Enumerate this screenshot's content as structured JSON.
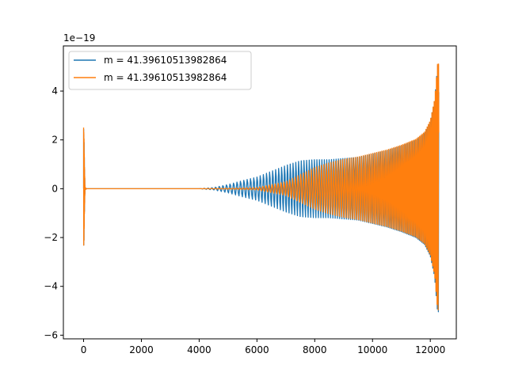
{
  "chart_data": {
    "type": "line",
    "title": "",
    "xlabel": "",
    "ylabel": "",
    "offset_text": "1e−19",
    "xlim": [
      -700,
      12900
    ],
    "ylim": [
      -6.15,
      5.85
    ],
    "x_ticks": [
      {
        "value": 0,
        "label": "0"
      },
      {
        "value": 2000,
        "label": "2000"
      },
      {
        "value": 4000,
        "label": "4000"
      },
      {
        "value": 6000,
        "label": "6000"
      },
      {
        "value": 8000,
        "label": "8000"
      },
      {
        "value": 10000,
        "label": "10000"
      },
      {
        "value": 12000,
        "label": "12000"
      }
    ],
    "y_ticks": [
      {
        "value": -6,
        "label": "−6"
      },
      {
        "value": -4,
        "label": "−4"
      },
      {
        "value": -2,
        "label": "−2"
      },
      {
        "value": 0,
        "label": "0"
      },
      {
        "value": 2,
        "label": "2"
      },
      {
        "value": 4,
        "label": "4"
      }
    ],
    "grid": false,
    "legend_position": "upper-left",
    "series": [
      {
        "name": "m = 41.39610513982864",
        "color": "#1f77b4",
        "envelope": [
          [
            0,
            2.6
          ],
          [
            15,
            2.2
          ],
          [
            30,
            1.0
          ],
          [
            50,
            0.05
          ],
          [
            100,
            0.0
          ],
          [
            4000,
            0.0
          ],
          [
            4500,
            0.05
          ],
          [
            5000,
            0.18
          ],
          [
            5500,
            0.35
          ],
          [
            6000,
            0.5
          ],
          [
            6500,
            0.75
          ],
          [
            7000,
            1.0
          ],
          [
            7500,
            1.2
          ],
          [
            8000,
            1.25
          ],
          [
            8500,
            1.25
          ],
          [
            9000,
            1.3
          ],
          [
            9500,
            1.35
          ],
          [
            10000,
            1.5
          ],
          [
            10500,
            1.65
          ],
          [
            11000,
            1.85
          ],
          [
            11500,
            2.1
          ],
          [
            11800,
            2.4
          ],
          [
            12000,
            2.9
          ],
          [
            12150,
            3.8
          ],
          [
            12250,
            5.3
          ],
          [
            12290,
            5.3
          ],
          [
            12310,
            0.0
          ]
        ]
      },
      {
        "name": "m = 41.39610513982864",
        "color": "#ff7f0e",
        "envelope": [
          [
            0,
            2.6
          ],
          [
            15,
            2.2
          ],
          [
            30,
            1.0
          ],
          [
            50,
            0.05
          ],
          [
            100,
            0.0
          ],
          [
            4000,
            0.0
          ],
          [
            5000,
            0.02
          ],
          [
            6000,
            0.05
          ],
          [
            7000,
            0.3
          ],
          [
            7500,
            0.6
          ],
          [
            8000,
            0.9
          ],
          [
            8500,
            1.1
          ],
          [
            9000,
            1.25
          ],
          [
            9500,
            1.35
          ],
          [
            10000,
            1.5
          ],
          [
            10500,
            1.65
          ],
          [
            11000,
            1.85
          ],
          [
            11500,
            2.1
          ],
          [
            11800,
            2.4
          ],
          [
            12000,
            2.9
          ],
          [
            12150,
            3.8
          ],
          [
            12250,
            5.3
          ],
          [
            12290,
            5.3
          ],
          [
            12310,
            0.0
          ]
        ]
      }
    ]
  }
}
